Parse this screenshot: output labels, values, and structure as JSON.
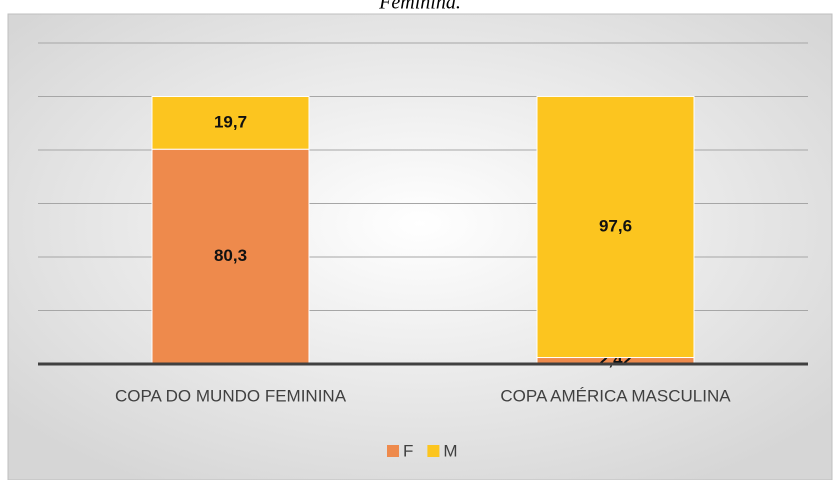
{
  "chart_data": {
    "type": "stacked_bar",
    "title": "Feminina.",
    "categories": [
      "COPA DO MUNDO FEMININA",
      "COPA AMÉRICA MASCULINA"
    ],
    "series": [
      {
        "name": "F",
        "color": "#ee8a4c",
        "values": [
          80.3,
          2.42
        ],
        "value_labels": [
          "80,3",
          "2,42"
        ]
      },
      {
        "name": "M",
        "color": "#fcc51f",
        "values": [
          19.7,
          97.6
        ],
        "value_labels": [
          "19,7",
          "97,6"
        ]
      }
    ],
    "ylim": [
      0,
      120
    ],
    "yticks": [
      0,
      20,
      40,
      60,
      80,
      100,
      120
    ],
    "grid": true,
    "legend": "bottom"
  }
}
